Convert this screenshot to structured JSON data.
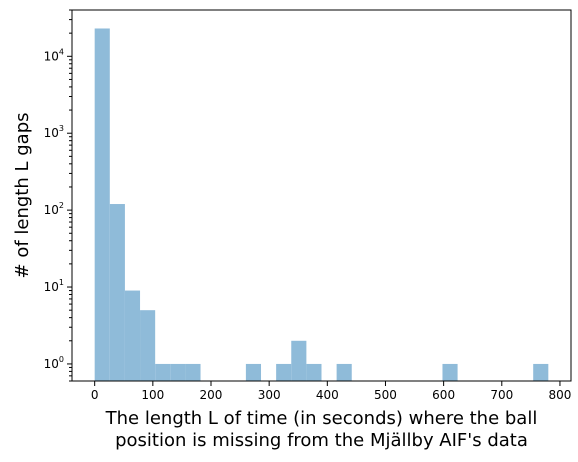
{
  "chart_data": {
    "type": "bar",
    "bins": [
      {
        "x0": 0,
        "x1": 26,
        "count": 23000
      },
      {
        "x0": 26,
        "x1": 52,
        "count": 120
      },
      {
        "x0": 52,
        "x1": 78,
        "count": 9
      },
      {
        "x0": 78,
        "x1": 104,
        "count": 5
      },
      {
        "x0": 104,
        "x1": 130,
        "count": 1
      },
      {
        "x0": 130,
        "x1": 156,
        "count": 1
      },
      {
        "x0": 156,
        "x1": 182,
        "count": 1
      },
      {
        "x0": 260,
        "x1": 286,
        "count": 1
      },
      {
        "x0": 312,
        "x1": 338,
        "count": 1
      },
      {
        "x0": 338,
        "x1": 364,
        "count": 2
      },
      {
        "x0": 364,
        "x1": 390,
        "count": 1
      },
      {
        "x0": 416,
        "x1": 442,
        "count": 1
      },
      {
        "x0": 598,
        "x1": 624,
        "count": 1
      },
      {
        "x0": 754,
        "x1": 780,
        "count": 1
      }
    ],
    "xlabel_line1": "The length L of time (in seconds) where the ball",
    "xlabel_line2": "position is missing from the Mjällby AIF's data",
    "ylabel": "# of length L gaps",
    "xlim": [
      -39,
      819
    ],
    "ylim": [
      0.6,
      40000
    ],
    "yscale": "log",
    "xticks": [
      0,
      100,
      200,
      300,
      400,
      500,
      600,
      700,
      800
    ],
    "yticks": [
      {
        "value": 1,
        "base": "10",
        "exp": "0"
      },
      {
        "value": 10,
        "base": "10",
        "exp": "1"
      },
      {
        "value": 100,
        "base": "10",
        "exp": "2"
      },
      {
        "value": 1000,
        "base": "10",
        "exp": "3"
      },
      {
        "value": 10000,
        "base": "10",
        "exp": "4"
      }
    ],
    "bar_color": "#8fbbd9",
    "grid": false,
    "legend": "none"
  }
}
